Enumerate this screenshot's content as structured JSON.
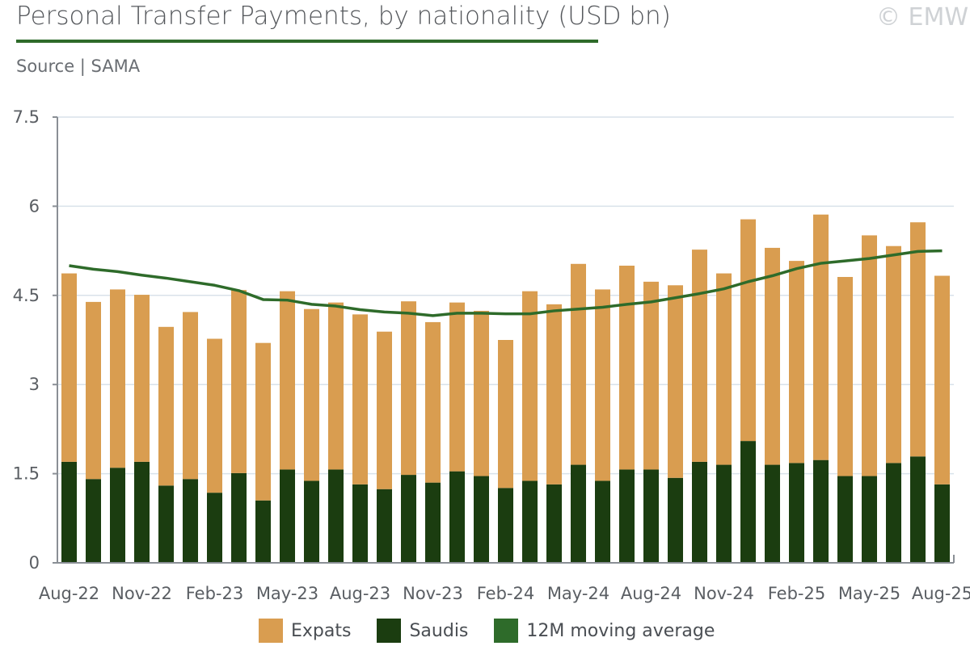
{
  "header": {
    "title": "Personal Transfer Payments, by nationality (USD bn)",
    "source": "Source | SAMA",
    "copyright": "© EMW"
  },
  "colors": {
    "expats": "#d99d50",
    "saudis": "#1b3d10",
    "moving_average": "#2e6b2a",
    "title_rule": "#2e6b2a",
    "grid": "#d9e2ea",
    "axis": "#8a8f95"
  },
  "chart_data": {
    "type": "bar",
    "stacked": true,
    "title": "Personal Transfer Payments, by nationality (USD bn)",
    "xlabel": "",
    "ylabel": "",
    "ylim": [
      0,
      7.5
    ],
    "yticks": [
      "0",
      "1.5",
      "3",
      "4.5",
      "6",
      "7.5"
    ],
    "ytick_values": [
      0,
      1.5,
      3,
      4.5,
      6,
      7.5
    ],
    "grid": true,
    "legend_position": "bottom",
    "xtick_labels": [
      "Aug-22",
      "Nov-22",
      "Feb-23",
      "May-23",
      "Aug-23",
      "Nov-23",
      "Feb-24",
      "May-24",
      "Aug-24",
      "Nov-24",
      "Feb-25",
      "May-25",
      "Aug-25"
    ],
    "xtick_every": 3,
    "categories": [
      "Aug-22",
      "Sep-22",
      "Oct-22",
      "Nov-22",
      "Dec-22",
      "Jan-23",
      "Feb-23",
      "Mar-23",
      "Apr-23",
      "May-23",
      "Jun-23",
      "Jul-23",
      "Aug-23",
      "Sep-23",
      "Oct-23",
      "Nov-23",
      "Dec-23",
      "Jan-24",
      "Feb-24",
      "Mar-24",
      "Apr-24",
      "May-24",
      "Jun-24",
      "Jul-24",
      "Aug-24",
      "Sep-24",
      "Oct-24",
      "Nov-24",
      "Dec-24",
      "Jan-25",
      "Feb-25",
      "Mar-25",
      "Apr-25",
      "May-25",
      "Jun-25",
      "Jul-25",
      "Aug-25"
    ],
    "series": [
      {
        "name": "Saudis",
        "kind": "bar",
        "values": [
          1.7,
          1.41,
          1.6,
          1.7,
          1.3,
          1.41,
          1.18,
          1.51,
          1.05,
          1.57,
          1.38,
          1.57,
          1.32,
          1.24,
          1.48,
          1.35,
          1.54,
          1.46,
          1.26,
          1.38,
          1.32,
          1.65,
          1.38,
          1.57,
          1.57,
          1.43,
          1.7,
          1.65,
          2.05,
          1.65,
          1.68,
          1.73,
          1.46,
          1.46,
          1.68,
          1.79,
          1.32
        ]
      },
      {
        "name": "Expats",
        "kind": "bar",
        "values": [
          3.17,
          2.98,
          3.0,
          2.81,
          2.67,
          2.81,
          2.59,
          3.08,
          2.65,
          3.0,
          2.89,
          2.81,
          2.86,
          2.65,
          2.92,
          2.7,
          2.84,
          2.78,
          2.49,
          3.19,
          3.03,
          3.38,
          3.22,
          3.43,
          3.16,
          3.24,
          3.57,
          3.22,
          3.73,
          3.65,
          3.4,
          4.13,
          3.35,
          4.05,
          3.65,
          3.94,
          3.51
        ]
      },
      {
        "name": "12M moving average",
        "kind": "line",
        "values": [
          5.0,
          4.94,
          4.9,
          4.84,
          4.79,
          4.73,
          4.67,
          4.58,
          4.43,
          4.42,
          4.35,
          4.32,
          4.26,
          4.22,
          4.2,
          4.16,
          4.2,
          4.2,
          4.19,
          4.19,
          4.24,
          4.27,
          4.3,
          4.35,
          4.39,
          4.46,
          4.53,
          4.61,
          4.73,
          4.83,
          4.95,
          5.04,
          5.08,
          5.12,
          5.18,
          5.24,
          5.25
        ]
      }
    ]
  },
  "legend": {
    "items": [
      {
        "label": "Expats",
        "color": "#d99d50"
      },
      {
        "label": "Saudis",
        "color": "#1b3d10"
      },
      {
        "label": "12M moving average",
        "color": "#2e6b2a"
      }
    ]
  }
}
